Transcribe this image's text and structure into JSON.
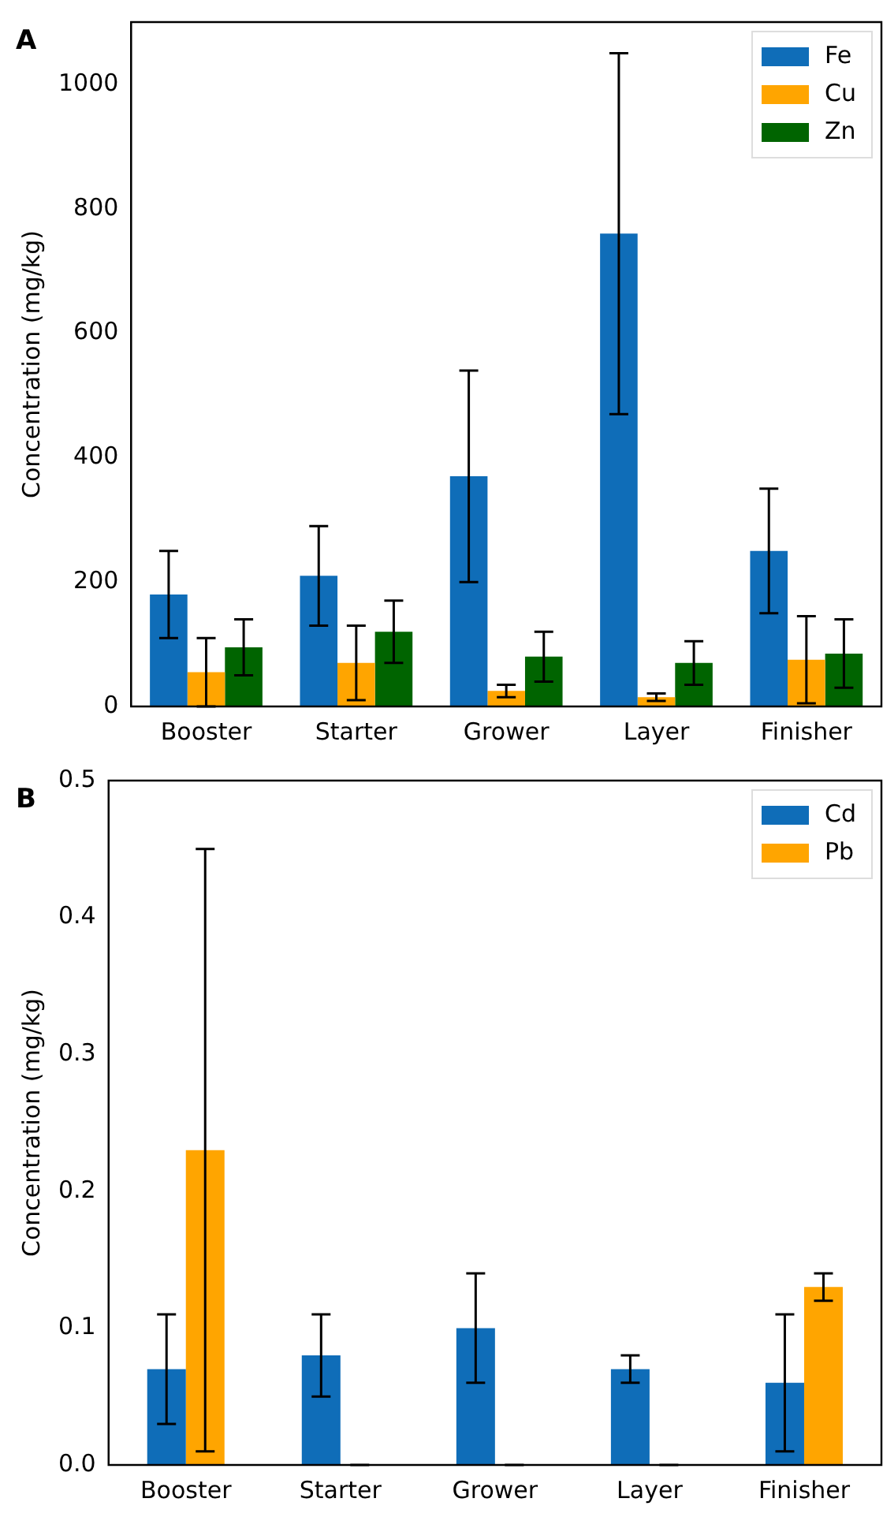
{
  "chart_data": [
    {
      "type": "bar",
      "annotations": [
        "A"
      ],
      "ylabel": "Concentration (mg/kg)",
      "categories": [
        "Booster",
        "Starter",
        "Grower",
        "Layer",
        "Finisher"
      ],
      "series": [
        {
          "name": "Fe",
          "color": "#0f6db8",
          "values": [
            180,
            210,
            370,
            760,
            250
          ],
          "errors": [
            70,
            80,
            170,
            290,
            100
          ]
        },
        {
          "name": "Cu",
          "color": "#ffa500",
          "values": [
            55,
            70,
            25,
            15,
            75
          ],
          "errors": [
            55,
            60,
            10,
            6,
            70
          ]
        },
        {
          "name": "Zn",
          "color": "#006400",
          "values": [
            95,
            120,
            80,
            70,
            85
          ],
          "errors": [
            45,
            50,
            40,
            35,
            55
          ]
        }
      ],
      "ylim": [
        0,
        1100
      ],
      "yticks": [
        0,
        200,
        400,
        600,
        800,
        1000
      ],
      "grid": false,
      "legend": "top right"
    },
    {
      "type": "bar",
      "annotations": [
        "B"
      ],
      "ylabel": "Concentration (mg/kg)",
      "categories": [
        "Booster",
        "Starter",
        "Grower",
        "Layer",
        "Finisher"
      ],
      "series": [
        {
          "name": "Cd",
          "color": "#0f6db8",
          "values": [
            0.07,
            0.08,
            0.1,
            0.07,
            0.06
          ],
          "errors": [
            0.04,
            0.03,
            0.04,
            0.01,
            0.05
          ]
        },
        {
          "name": "Pb",
          "color": "#ffa500",
          "values": [
            0.23,
            0,
            0,
            0,
            0.13
          ],
          "errors": [
            0.22,
            0,
            0,
            0,
            0.01
          ]
        }
      ],
      "ylim": [
        0,
        0.5
      ],
      "yticks": [
        {
          "value": 0,
          "label": "0.0"
        },
        0.1,
        0.2,
        0.3,
        0.4,
        0.5
      ],
      "grid": false,
      "legend": "top right"
    }
  ]
}
